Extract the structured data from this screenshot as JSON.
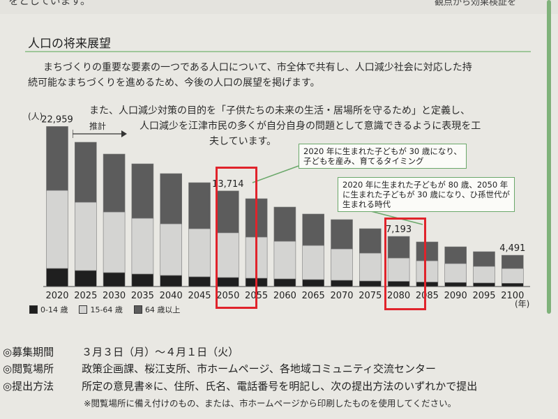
{
  "header": {
    "cut_text_left": "をとしています。",
    "cut_text_right": "観点から効果検証を"
  },
  "section_title": "人口の将来展望",
  "paragraph_lines": [
    "まちづくりの重要な要素の一つである人口について、市全体で共有し、人口減少社会に対応した持",
    "続可能なまちづくりを進めるため、今後の人口の展望を掲げます。",
    "また、人口減少対策の目的を「子供たちの未来の生活・居場所を守るため」と定義し、",
    "人口減少を江津市民の多くが自分自身の問題として意識できるように表現を工",
    "夫しています。"
  ],
  "chart_data": {
    "type": "bar",
    "stacked": true,
    "categories": [
      "2020",
      "2025",
      "2030",
      "2035",
      "2040",
      "2045",
      "2050",
      "2055",
      "2060",
      "2065",
      "2070",
      "2075",
      "2080",
      "2085",
      "2090",
      "2095",
      "2100"
    ],
    "totals": [
      22959,
      20700,
      19000,
      17600,
      16200,
      14900,
      13714,
      12600,
      11400,
      10400,
      9600,
      8300,
      7193,
      6400,
      5700,
      5000,
      4491
    ],
    "series": [
      {
        "name": "0-14 歳",
        "values": [
          2600,
          2300,
          2000,
          1800,
          1600,
          1400,
          1300,
          1200,
          1100,
          1000,
          900,
          800,
          750,
          650,
          580,
          520,
          470
        ]
      },
      {
        "name": "15-64 歳",
        "values": [
          11200,
          9800,
          8700,
          8000,
          7400,
          6900,
          6414,
          5900,
          5400,
          4900,
          4500,
          4000,
          3343,
          3050,
          2720,
          2380,
          2121
        ]
      },
      {
        "name": "64 歳以上",
        "values": [
          9159,
          8600,
          8300,
          7800,
          7200,
          6600,
          6000,
          5500,
          4900,
          4500,
          4200,
          3500,
          3100,
          2700,
          2400,
          2100,
          1900
        ]
      }
    ],
    "colors": {
      "0-14 歳": "#1f1f1f",
      "15-64 歳": "#d4d4d2",
      "64 歳以上": "#5c5c5c"
    },
    "data_labels": [
      {
        "category": "2020",
        "text": "22,959"
      },
      {
        "category": "2050",
        "text": "13,714"
      },
      {
        "category": "2080",
        "text": "7,193"
      },
      {
        "category": "2100",
        "text": "4,491"
      }
    ],
    "ylabel_unit": "(人)",
    "xlabel_unit": "(年)",
    "projection_label": "推計",
    "highlighted": [
      "2050",
      "2080"
    ],
    "ylim": [
      0,
      23500
    ],
    "grid": false,
    "legend_position": "bottom-left"
  },
  "callouts": [
    {
      "lines": [
        "2020 年に生まれた子どもが 30 歳になり、",
        "子どもを産み、育てるタイミング"
      ]
    },
    {
      "lines": [
        "2020 年に生まれた子どもが 80 歳、2050 年",
        "に生まれた子どもが 30 歳になり、ひ孫世代が",
        "生まれる時代"
      ]
    }
  ],
  "info_rows": [
    {
      "mark": "◎",
      "label": "募集期間",
      "value": "３月３日（月）～４月１日（火）"
    },
    {
      "mark": "◎",
      "label": "閲覧場所",
      "value": "政策企画課、桜江支所、市ホームページ、各地域コミュニティ交流センター"
    },
    {
      "mark": "◎",
      "label": "提出方法",
      "value": "所定の意見書※に、住所、氏名、電話番号を明記し、次の提出方法のいずれかで提出"
    }
  ],
  "note": "※閲覧場所に備え付けのもの、または、市ホームページから印刷したものを使用してください。",
  "accent_colors": {
    "highlight": "#e0232b",
    "callout_border": "#6aa86a",
    "rule": "#9fc79a"
  }
}
